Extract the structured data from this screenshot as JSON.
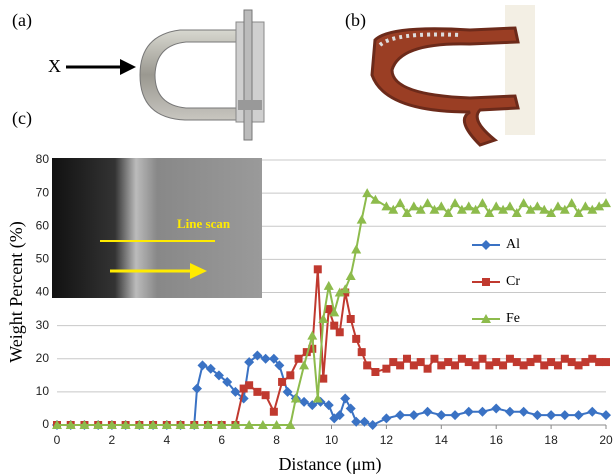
{
  "panels": {
    "a": "(a)",
    "b": "(b)",
    "c": "(c)"
  },
  "arrow_label": "X",
  "inset_label": "Line scan",
  "chart_data": {
    "type": "line",
    "x_label": "Distance (μm)",
    "y_label": "Weight Percent (%)",
    "xlim": [
      0,
      20
    ],
    "xticks": [
      0,
      2,
      4,
      6,
      8,
      10,
      12,
      14,
      16,
      18,
      20
    ],
    "ylim": [
      0,
      80
    ],
    "yticks": [
      0,
      10,
      20,
      30,
      40,
      50,
      60,
      70,
      80
    ],
    "grid": true,
    "legend": "right",
    "series": [
      {
        "name": "Al",
        "color": "#3a72c4",
        "marker": "diamond",
        "x": [
          0,
          0.5,
          1,
          1.5,
          2,
          2.5,
          3,
          3.5,
          4,
          4.5,
          5,
          5.1,
          5.3,
          5.6,
          5.9,
          6.2,
          6.5,
          6.8,
          7,
          7.3,
          7.6,
          7.9,
          8.1,
          8.4,
          8.7,
          9,
          9.3,
          9.6,
          9.9,
          10.1,
          10.3,
          10.5,
          10.7,
          10.9,
          11.2,
          11.5,
          12,
          12.5,
          13,
          13.5,
          14,
          14.5,
          15,
          15.5,
          16,
          16.5,
          17,
          17.5,
          18,
          18.5,
          19,
          19.5,
          20
        ],
        "values": [
          0,
          0,
          0,
          0,
          0,
          0,
          0,
          0,
          0,
          0,
          0,
          11,
          18,
          17,
          15,
          13,
          10,
          8,
          19,
          21,
          20,
          20,
          18,
          10,
          8,
          7,
          6,
          7,
          6,
          2,
          3,
          8,
          5,
          1,
          1,
          0,
          2,
          3,
          3,
          4,
          3,
          3,
          4,
          4,
          5,
          4,
          4,
          3,
          3,
          3,
          3,
          4,
          3
        ]
      },
      {
        "name": "Cr",
        "color": "#c0392f",
        "marker": "square",
        "x": [
          0,
          0.5,
          1,
          1.5,
          2,
          2.5,
          3,
          3.5,
          4,
          4.5,
          5,
          5.5,
          6,
          6.5,
          6.8,
          7,
          7.3,
          7.6,
          7.9,
          8.2,
          8.5,
          8.8,
          9.1,
          9.3,
          9.5,
          9.7,
          9.9,
          10.1,
          10.3,
          10.5,
          10.7,
          10.9,
          11.1,
          11.3,
          11.6,
          12,
          12.25,
          12.5,
          12.75,
          13,
          13.25,
          13.5,
          13.75,
          14,
          14.25,
          14.5,
          14.75,
          15,
          15.25,
          15.5,
          15.75,
          16,
          16.25,
          16.5,
          16.75,
          17,
          17.25,
          17.5,
          17.75,
          18,
          18.25,
          18.5,
          18.75,
          19,
          19.25,
          19.5,
          19.75,
          20
        ],
        "values": [
          0,
          0,
          0,
          0,
          0,
          0,
          0,
          0,
          0,
          0,
          0,
          0,
          0,
          0,
          11,
          12,
          10,
          9,
          4,
          13,
          15,
          20,
          22,
          23,
          47,
          14,
          35,
          30,
          28,
          40,
          32,
          26,
          22,
          18,
          16,
          17,
          19,
          18,
          20,
          18,
          19,
          17,
          20,
          18,
          19,
          18,
          20,
          19,
          18,
          20,
          18,
          19,
          18,
          20,
          19,
          18,
          19,
          20,
          18,
          19,
          18,
          20,
          19,
          18,
          19,
          20,
          19,
          19
        ]
      },
      {
        "name": "Fe",
        "color": "#8dbb4c",
        "marker": "triangle",
        "x": [
          0,
          0.5,
          1,
          1.5,
          2,
          2.5,
          3,
          3.5,
          4,
          4.5,
          5,
          5.5,
          6,
          6.5,
          7,
          7.5,
          8,
          8.5,
          8.7,
          9,
          9.3,
          9.5,
          9.7,
          9.9,
          10.1,
          10.3,
          10.5,
          10.7,
          10.9,
          11.1,
          11.3,
          11.6,
          12,
          12.25,
          12.5,
          12.75,
          13,
          13.25,
          13.5,
          13.75,
          14,
          14.25,
          14.5,
          14.75,
          15,
          15.25,
          15.5,
          15.75,
          16,
          16.25,
          16.5,
          16.75,
          17,
          17.25,
          17.5,
          17.75,
          18,
          18.25,
          18.5,
          18.75,
          19,
          19.25,
          19.5,
          19.75,
          20
        ],
        "values": [
          0,
          0,
          0,
          0,
          0,
          0,
          0,
          0,
          0,
          0,
          0,
          0,
          0,
          0,
          0,
          0,
          0,
          0,
          8,
          18,
          27,
          8,
          32,
          42,
          34,
          40,
          41,
          45,
          53,
          62,
          70,
          68,
          66,
          65,
          67,
          64,
          66,
          65,
          67,
          65,
          66,
          64,
          67,
          65,
          66,
          65,
          67,
          64,
          66,
          65,
          66,
          64,
          67,
          65,
          66,
          65,
          64,
          66,
          65,
          67,
          64,
          66,
          65,
          66,
          67
        ]
      }
    ]
  }
}
